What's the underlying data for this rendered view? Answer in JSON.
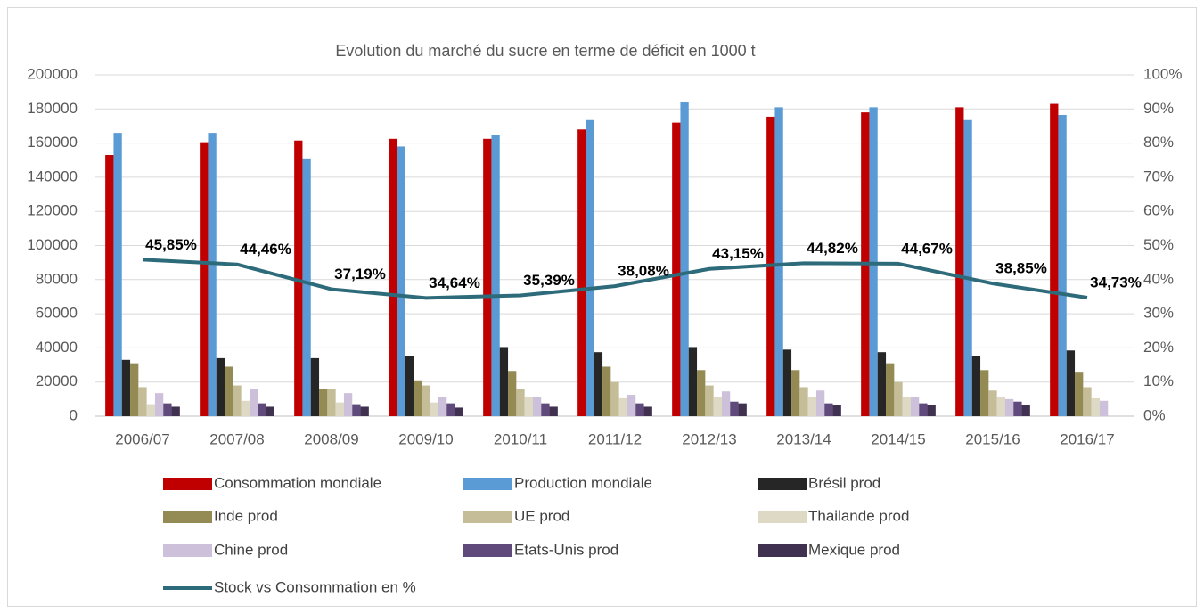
{
  "chart_data": {
    "type": "bar",
    "title": "Evolution du marché du sucre en terme de déficit en 1000 t",
    "categories": [
      "2006/07",
      "2007/08",
      "2008/09",
      "2009/10",
      "2010/11",
      "2011/12",
      "2012/13",
      "2013/14",
      "2014/15",
      "2015/16",
      "2016/17"
    ],
    "ylim": [
      0,
      200000
    ],
    "yticks": [
      0,
      20000,
      40000,
      60000,
      80000,
      100000,
      120000,
      140000,
      160000,
      180000,
      200000
    ],
    "y2lim": [
      0,
      100
    ],
    "y2ticks": [
      {
        "value": 0,
        "label": "0%"
      },
      {
        "value": 10,
        "label": "10%"
      },
      {
        "value": 20,
        "label": "20%"
      },
      {
        "value": 30,
        "label": "30%"
      },
      {
        "value": 40,
        "label": "40%"
      },
      {
        "value": 50,
        "label": "50%"
      },
      {
        "value": 60,
        "label": "60%"
      },
      {
        "value": 70,
        "label": "70%"
      },
      {
        "value": 80,
        "label": "80%"
      },
      {
        "value": 90,
        "label": "90%"
      },
      {
        "value": 100,
        "label": "100%"
      }
    ],
    "grid": true,
    "series": [
      {
        "name": "Consommation mondiale",
        "color": "#c00000",
        "values": [
          153000,
          160500,
          161500,
          162500,
          162500,
          168000,
          172000,
          175500,
          178000,
          181000,
          183000
        ]
      },
      {
        "name": "Production  mondiale",
        "color": "#5b9bd5",
        "values": [
          166000,
          166000,
          151000,
          158000,
          165000,
          173500,
          184000,
          181000,
          181000,
          173500,
          176500
        ]
      },
      {
        "name": "Brésil prod",
        "color": "#262626",
        "values": [
          33000,
          34000,
          34000,
          35000,
          40500,
          37500,
          40500,
          39000,
          37500,
          35500,
          38500
        ]
      },
      {
        "name": "Inde prod",
        "color": "#948a54",
        "values": [
          31000,
          29000,
          16000,
          21000,
          26500,
          29000,
          27000,
          27000,
          31000,
          27000,
          25500
        ]
      },
      {
        "name": "UE prod",
        "color": "#c4bd97",
        "values": [
          17000,
          18000,
          16000,
          18000,
          16000,
          20000,
          18000,
          17000,
          20000,
          15000,
          17000
        ]
      },
      {
        "name": "Thailande prod",
        "color": "#ddd9c4",
        "values": [
          7000,
          9000,
          8000,
          8000,
          11000,
          10500,
          11000,
          11000,
          11000,
          11000,
          10500
        ]
      },
      {
        "name": "Chine prod",
        "color": "#ccc0da",
        "values": [
          13500,
          16000,
          13500,
          11500,
          11500,
          12500,
          14500,
          15000,
          11500,
          10000,
          9000
        ]
      },
      {
        "name": "Etats-Unis prod",
        "color": "#604a7b",
        "values": [
          7500,
          7500,
          7000,
          7500,
          7500,
          7500,
          8500,
          7500,
          7500,
          8500,
          null
        ]
      },
      {
        "name": "Mexique prod",
        "color": "#403151",
        "values": [
          5500,
          5500,
          5500,
          5000,
          5500,
          5500,
          7500,
          6500,
          6500,
          6500,
          null
        ]
      },
      {
        "name": "Stock vs Consommation en %",
        "color": "#2e6b7a",
        "type": "line",
        "axis": "y2",
        "values": [
          45.85,
          44.46,
          37.19,
          34.64,
          35.39,
          38.08,
          43.15,
          44.82,
          44.67,
          38.85,
          34.73
        ],
        "value_labels": [
          "45,85%",
          "44,46%",
          "37,19%",
          "34,64%",
          "35,39%",
          "38,08%",
          "43,15%",
          "44,82%",
          "44,67%",
          "38,85%",
          "34,73%"
        ]
      }
    ]
  }
}
